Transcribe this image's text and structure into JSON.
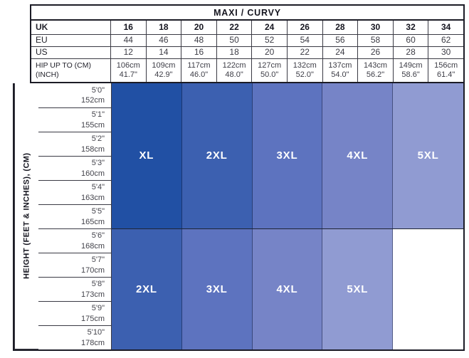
{
  "title": "MAXI / CURVY",
  "axis_label": "HEIGHT (FEET & INCHES), (CM)",
  "header_rows": [
    {
      "label": "UK",
      "bold": true,
      "values": [
        "16",
        "18",
        "20",
        "22",
        "24",
        "26",
        "28",
        "30",
        "32",
        "34"
      ]
    },
    {
      "label": "EU",
      "bold": false,
      "values": [
        "44",
        "46",
        "48",
        "50",
        "52",
        "54",
        "56",
        "58",
        "60",
        "62"
      ]
    },
    {
      "label": "US",
      "bold": false,
      "values": [
        "12",
        "14",
        "16",
        "18",
        "20",
        "22",
        "24",
        "26",
        "28",
        "30"
      ]
    }
  ],
  "hip_row": {
    "label_line1": "HIP UP TO (CM)",
    "label_line2": "(INCH)",
    "values": [
      {
        "cm": "106cm",
        "inch": "41.7\""
      },
      {
        "cm": "109cm",
        "inch": "42.9\""
      },
      {
        "cm": "117cm",
        "inch": "46.0\""
      },
      {
        "cm": "122cm",
        "inch": "48.0\""
      },
      {
        "cm": "127cm",
        "inch": "50.0\""
      },
      {
        "cm": "132cm",
        "inch": "52.0\""
      },
      {
        "cm": "137cm",
        "inch": "54.0\""
      },
      {
        "cm": "143cm",
        "inch": "56.2\""
      },
      {
        "cm": "149cm",
        "inch": "58.6\""
      },
      {
        "cm": "156cm",
        "inch": "61.4\""
      }
    ]
  },
  "heights": [
    {
      "ft": "5'0\"",
      "cm": "152cm"
    },
    {
      "ft": "5'1\"",
      "cm": "155cm"
    },
    {
      "ft": "5'2\"",
      "cm": "158cm"
    },
    {
      "ft": "5'3\"",
      "cm": "160cm"
    },
    {
      "ft": "5'4\"",
      "cm": "163cm"
    },
    {
      "ft": "5'5\"",
      "cm": "165cm"
    },
    {
      "ft": "5'6\"",
      "cm": "168cm"
    },
    {
      "ft": "5'7\"",
      "cm": "170cm"
    },
    {
      "ft": "5'8\"",
      "cm": "173cm"
    },
    {
      "ft": "5'9\"",
      "cm": "175cm"
    },
    {
      "ft": "5'10\"",
      "cm": "178cm"
    }
  ],
  "blocks": {
    "top": [
      {
        "label": "XL",
        "span": 2,
        "color": "#2150a4"
      },
      {
        "label": "2XL",
        "span": 2,
        "color": "#3c60b0"
      },
      {
        "label": "3XL",
        "span": 2,
        "color": "#5d73bf"
      },
      {
        "label": "4XL",
        "span": 2,
        "color": "#7684c7"
      },
      {
        "label": "5XL",
        "span": 2,
        "color": "#909bd2"
      }
    ],
    "bottom": [
      {
        "label": "2XL",
        "span": 2,
        "color": "#3c60b0"
      },
      {
        "label": "3XL",
        "span": 2,
        "color": "#5d73bf"
      },
      {
        "label": "4XL",
        "span": 2,
        "color": "#7684c7"
      },
      {
        "label": "5XL",
        "span": 2,
        "color": "#909bd2"
      },
      {
        "label": "",
        "span": 2,
        "color": "#ffffff"
      }
    ]
  },
  "colors": {
    "border_outer": "#1c1c26",
    "border_inner": "#3a3a44",
    "size_xl": "#2150a4",
    "size_2xl": "#3c60b0",
    "size_3xl": "#5d73bf",
    "size_4xl": "#7684c7",
    "size_5xl": "#909bd2",
    "label_text": "#ffffff"
  },
  "chart_data": {
    "type": "table",
    "title": "MAXI / CURVY",
    "row_headers": [
      "UK",
      "EU",
      "US",
      "HIP UP TO (CM) (INCH)"
    ],
    "uk": [
      16,
      18,
      20,
      22,
      24,
      26,
      28,
      30,
      32,
      34
    ],
    "eu": [
      44,
      46,
      48,
      50,
      52,
      54,
      56,
      58,
      60,
      62
    ],
    "us": [
      12,
      14,
      16,
      18,
      20,
      22,
      24,
      26,
      28,
      30
    ],
    "hip_up_to_cm": [
      106,
      109,
      117,
      122,
      127,
      132,
      137,
      143,
      149,
      156
    ],
    "hip_up_to_inch": [
      41.7,
      42.9,
      46.0,
      48.0,
      50.0,
      52.0,
      54.0,
      56.2,
      58.6,
      61.4
    ],
    "y_axis_label": "HEIGHT (FEET & INCHES), (CM)",
    "height_feet_inches": [
      "5'0\"",
      "5'1\"",
      "5'2\"",
      "5'3\"",
      "5'4\"",
      "5'5\"",
      "5'6\"",
      "5'7\"",
      "5'8\"",
      "5'9\"",
      "5'10\""
    ],
    "height_cm": [
      152,
      155,
      158,
      160,
      163,
      165,
      168,
      170,
      173,
      175,
      178
    ],
    "size_regions": [
      {
        "height_range": "5'0\"-5'5\"",
        "uk_16_18": "XL",
        "uk_20_22": "2XL",
        "uk_24_26": "3XL",
        "uk_28_30": "4XL",
        "uk_32_34": "5XL"
      },
      {
        "height_range": "5'6\"-5'10\"",
        "uk_16_18": "2XL",
        "uk_20_22": "3XL",
        "uk_24_26": "4XL",
        "uk_28_30": "5XL",
        "uk_32_34": ""
      }
    ],
    "legend_position": "none",
    "grid": true
  }
}
